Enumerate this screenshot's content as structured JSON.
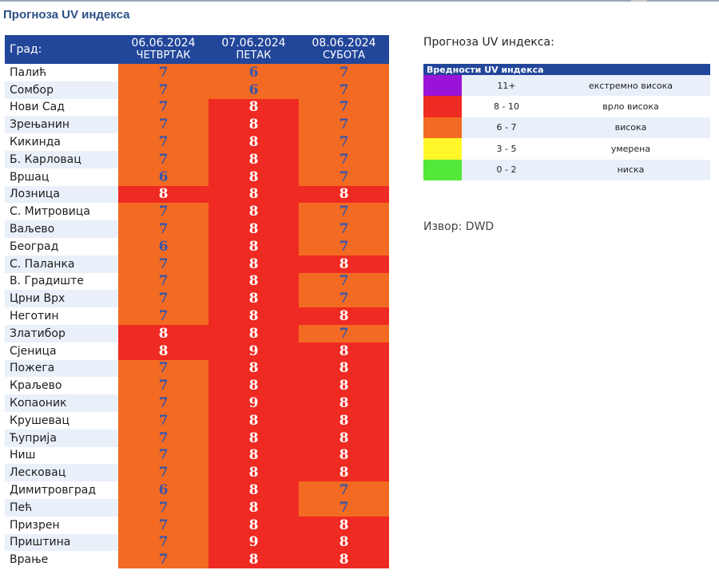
{
  "page_title": "Прогноза UV индекса",
  "colors": {
    "header_bg": "#22469a",
    "row_alt": "#e9f0fa",
    "text_on_red": "#ffffff",
    "text_on_orange": "#3b56a8"
  },
  "forecast": {
    "city_header": "Град:",
    "days": [
      {
        "date": "06.06.2024",
        "name": "ЧЕТВРТАК"
      },
      {
        "date": "07.06.2024",
        "name": "ПЕТАК"
      },
      {
        "date": "08.06.2024",
        "name": "СУБОТА"
      }
    ],
    "rows": [
      {
        "city": "Палић",
        "values": [
          "7",
          "6",
          "7"
        ]
      },
      {
        "city": "Сомбор",
        "values": [
          "7",
          "6",
          "7"
        ]
      },
      {
        "city": "Нови Сад",
        "values": [
          "7",
          "8",
          "7"
        ]
      },
      {
        "city": "Зрењанин",
        "values": [
          "7",
          "8",
          "7"
        ]
      },
      {
        "city": "Кикинда",
        "values": [
          "7",
          "8",
          "7"
        ]
      },
      {
        "city": "Б. Карловац",
        "values": [
          "7",
          "8",
          "7"
        ]
      },
      {
        "city": "Вршац",
        "values": [
          "6",
          "8",
          "7"
        ]
      },
      {
        "city": "Лозница",
        "values": [
          "8",
          "8",
          "8"
        ]
      },
      {
        "city": "С. Митровица",
        "values": [
          "7",
          "8",
          "7"
        ]
      },
      {
        "city": "Ваљево",
        "values": [
          "7",
          "8",
          "7"
        ]
      },
      {
        "city": "Београд",
        "values": [
          "6",
          "8",
          "7"
        ]
      },
      {
        "city": "С. Паланка",
        "values": [
          "7",
          "8",
          "8"
        ]
      },
      {
        "city": "В. Градиште",
        "values": [
          "7",
          "8",
          "7"
        ]
      },
      {
        "city": "Црни Врх",
        "values": [
          "7",
          "8",
          "7"
        ]
      },
      {
        "city": "Неготин",
        "values": [
          "7",
          "8",
          "8"
        ]
      },
      {
        "city": "Златибор",
        "values": [
          "8",
          "8",
          "7"
        ]
      },
      {
        "city": "Сјеница",
        "values": [
          "8",
          "9",
          "8"
        ]
      },
      {
        "city": "Пожега",
        "values": [
          "7",
          "8",
          "8"
        ]
      },
      {
        "city": "Краљево",
        "values": [
          "7",
          "8",
          "8"
        ]
      },
      {
        "city": "Копаоник",
        "values": [
          "7",
          "9",
          "8"
        ]
      },
      {
        "city": "Крушевац",
        "values": [
          "7",
          "8",
          "8"
        ]
      },
      {
        "city": "Ћуприја",
        "values": [
          "7",
          "8",
          "8"
        ]
      },
      {
        "city": "Ниш",
        "values": [
          "7",
          "8",
          "8"
        ]
      },
      {
        "city": "Лесковац",
        "values": [
          "7",
          "8",
          "8"
        ]
      },
      {
        "city": "Димитровград",
        "values": [
          "6",
          "8",
          "7"
        ]
      },
      {
        "city": "Пећ",
        "values": [
          "7",
          "8",
          "7"
        ]
      },
      {
        "city": "Призрен",
        "values": [
          "7",
          "8",
          "8"
        ]
      },
      {
        "city": "Приштина",
        "values": [
          "7",
          "9",
          "8"
        ]
      },
      {
        "city": "Врање",
        "values": [
          "7",
          "8",
          "8"
        ]
      }
    ]
  },
  "legend": {
    "title": "Прогноза UV индекса:",
    "header": "Вредности UV индекса",
    "rows": [
      {
        "color": "#9a13d8",
        "range": "11+",
        "label": "екстремно висока"
      },
      {
        "color": "#ef2a22",
        "range": "8 - 10",
        "label": "врло висока"
      },
      {
        "color": "#f36b22",
        "range": "6 - 7",
        "label": "висока"
      },
      {
        "color": "#fff72a",
        "range": "3 - 5",
        "label": "умерена"
      },
      {
        "color": "#53e83a",
        "range": "0 - 2",
        "label": "ниска"
      }
    ]
  },
  "source": "Извор: DWD"
}
